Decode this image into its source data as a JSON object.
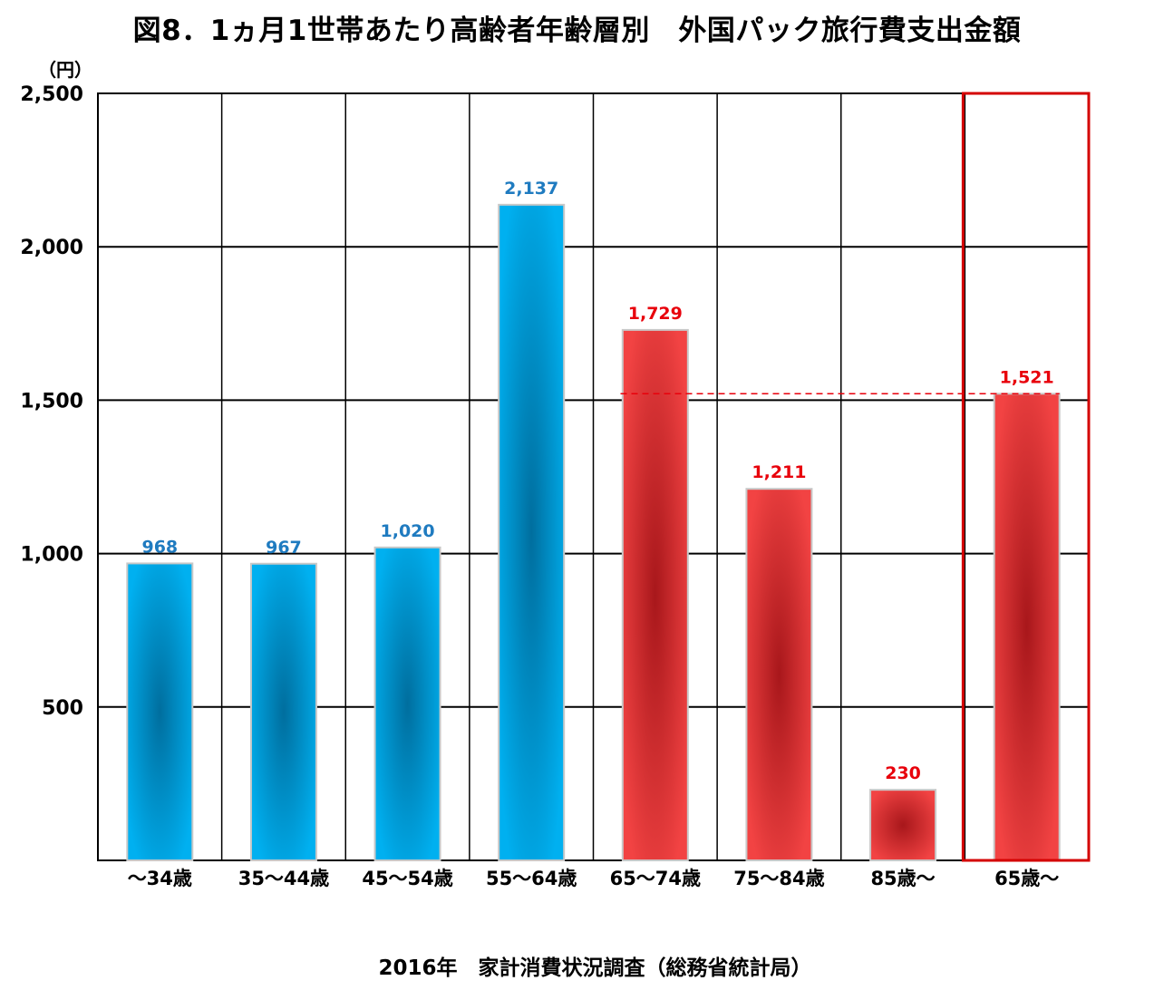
{
  "chart_data": {
    "type": "bar",
    "title": "図8．1ヵ月1世帯あたり高齢者年齢層別　外国パック旅行費支出金額",
    "ylabel": "（円）",
    "xlabel": "",
    "source": "2016年　家計消費状況調査（総務省統計局）",
    "categories": [
      "～34歳",
      "35～44歳",
      "45～54歳",
      "55～64歳",
      "65～74歳",
      "75～84歳",
      "85歳～",
      "65歳～"
    ],
    "values": [
      968,
      967,
      1020,
      2137,
      1729,
      1211,
      230,
      1521
    ],
    "value_labels": [
      "968",
      "967",
      "1,020",
      "2,137",
      "1,729",
      "1,211",
      "230",
      "1,521"
    ],
    "bar_colors": [
      "blue",
      "blue",
      "blue",
      "blue",
      "red",
      "red",
      "red",
      "red"
    ],
    "ylim": [
      0,
      2500
    ],
    "yticks": [
      "500",
      "1,000",
      "1,500",
      "2,000",
      "2,500"
    ],
    "grid": true,
    "highlight_category": "65歳～",
    "colors": {
      "blue": "#00b0f0",
      "blue_dark": "#006e9e",
      "red": "#f24343",
      "red_dark": "#a8171b",
      "blue_label": "#1f7bc0",
      "red_label": "#e8000b",
      "highlight_border": "#d40000"
    }
  }
}
